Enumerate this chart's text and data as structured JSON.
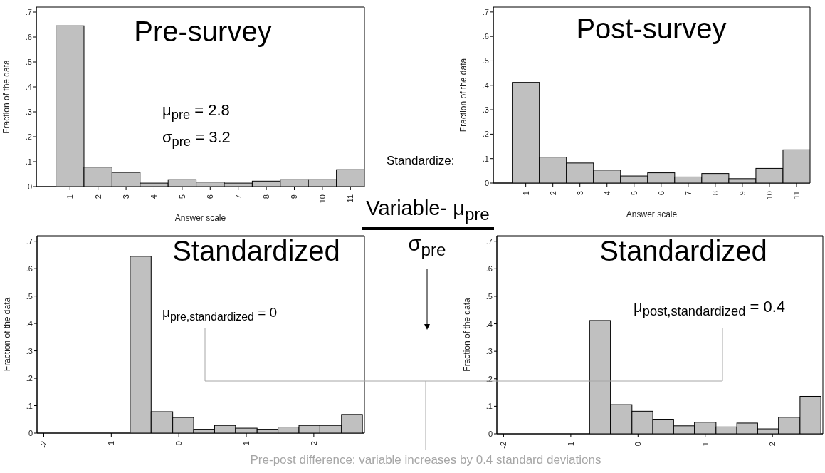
{
  "chart_data": [
    {
      "type": "histogram",
      "title": "Pre-survey",
      "xlabel": "Answer scale",
      "ylabel": "Fraction of the data",
      "color": "#c0c0c0",
      "bins": [
        0.5,
        1.5,
        2.5,
        3.5,
        4.5,
        5.5,
        6.5,
        7.5,
        8.5,
        9.5,
        10.5,
        11.5
      ],
      "values": [
        0.645,
        0.078,
        0.057,
        0.014,
        0.028,
        0.018,
        0.014,
        0.022,
        0.028,
        0.028,
        0.068
      ],
      "xlim": [
        -0.2,
        11.5
      ],
      "xticks": [
        1,
        2,
        3,
        4,
        5,
        6,
        7,
        8,
        9,
        10,
        11
      ],
      "ylim": [
        0,
        0.72
      ],
      "yticks": [
        {
          "value": 0,
          "label": "0"
        },
        {
          "value": 0.1,
          "label": ".1"
        },
        {
          "value": 0.2,
          "label": ".2"
        },
        {
          "value": 0.3,
          "label": ".3"
        },
        {
          "value": 0.4,
          "label": ".4"
        },
        {
          "value": 0.5,
          "label": ".5"
        },
        {
          "value": 0.6,
          "label": ".6"
        },
        {
          "value": 0.7,
          "label": ".7"
        }
      ],
      "grid": false,
      "annotations": [
        "μ$_{pre}$ = 2.8",
        "σ$_{pre}$ = 3.2"
      ]
    },
    {
      "type": "histogram",
      "title": "Post-survey",
      "xlabel": "Answer scale",
      "ylabel": "Fraction of the data",
      "color": "#c0c0c0",
      "bins": [
        0.5,
        1.5,
        2.5,
        3.5,
        4.5,
        5.5,
        6.5,
        7.5,
        8.5,
        9.5,
        10.5,
        11.5
      ],
      "values": [
        0.412,
        0.106,
        0.082,
        0.053,
        0.029,
        0.042,
        0.025,
        0.039,
        0.018,
        0.06,
        0.136
      ],
      "xlim": [
        -0.2,
        11.5
      ],
      "xticks": [
        1,
        2,
        3,
        4,
        5,
        6,
        7,
        8,
        9,
        10,
        11
      ],
      "ylim": [
        0,
        0.72
      ],
      "yticks": [
        {
          "value": 0,
          "label": "0"
        },
        {
          "value": 0.1,
          "label": ".1"
        },
        {
          "value": 0.2,
          "label": ".2"
        },
        {
          "value": 0.3,
          "label": ".3"
        },
        {
          "value": 0.4,
          "label": ".4"
        },
        {
          "value": 0.5,
          "label": ".5"
        },
        {
          "value": 0.6,
          "label": ".6"
        },
        {
          "value": 0.7,
          "label": ".7"
        }
      ],
      "grid": false
    },
    {
      "type": "histogram",
      "title": "Standardized",
      "ylabel": "Fraction of the data",
      "color": "#c0c0c0",
      "bins": [
        -0.72,
        -0.41,
        -0.09,
        0.22,
        0.53,
        0.84,
        1.16,
        1.47,
        1.78,
        2.09,
        2.41,
        2.72
      ],
      "values": [
        0.645,
        0.078,
        0.057,
        0.014,
        0.028,
        0.018,
        0.014,
        0.022,
        0.028,
        0.028,
        0.068
      ],
      "xlim": [
        -2.1,
        2.75
      ],
      "xticks": [
        -2,
        -1,
        0,
        1,
        2
      ],
      "ylim": [
        0,
        0.72
      ],
      "yticks": [
        {
          "value": 0,
          "label": "0"
        },
        {
          "value": 0.1,
          "label": ".1"
        },
        {
          "value": 0.2,
          "label": ".2"
        },
        {
          "value": 0.3,
          "label": ".3"
        },
        {
          "value": 0.4,
          "label": ".4"
        },
        {
          "value": 0.5,
          "label": ".5"
        },
        {
          "value": 0.6,
          "label": ".6"
        },
        {
          "value": 0.7,
          "label": ".7"
        }
      ],
      "grid": false,
      "annotations": [
        "μ$_{pre,standardized}$ = 0"
      ]
    },
    {
      "type": "histogram",
      "title": "Standardized",
      "ylabel": "Fraction of the data",
      "color": "#c0c0c0",
      "bins": [
        -0.72,
        -0.41,
        -0.09,
        0.22,
        0.53,
        0.84,
        1.16,
        1.47,
        1.78,
        2.09,
        2.41,
        2.72
      ],
      "values": [
        0.412,
        0.106,
        0.082,
        0.053,
        0.029,
        0.042,
        0.025,
        0.039,
        0.018,
        0.06,
        0.136
      ],
      "xlim": [
        -2.1,
        2.75
      ],
      "xticks": [
        -2,
        -1,
        0,
        1,
        2
      ],
      "ylim": [
        0,
        0.72
      ],
      "yticks": [
        {
          "value": 0,
          "label": "0"
        },
        {
          "value": 0.1,
          "label": ".1"
        },
        {
          "value": 0.2,
          "label": ".2"
        },
        {
          "value": 0.3,
          "label": ".3"
        },
        {
          "value": 0.4,
          "label": ".4"
        },
        {
          "value": 0.5,
          "label": ".5"
        },
        {
          "value": 0.6,
          "label": ".6"
        },
        {
          "value": 0.7,
          "label": ".7"
        }
      ],
      "grid": false,
      "annotations": [
        "μ$_{post,standardized}$ = 0.4"
      ]
    },
    {
      "type": "other",
      "annotations": [
        "Standardize:",
        "Variable- μ$_{pre}$",
        "σ$_{pre}$",
        "Pre-post difference: variable increases by 0.4 standard deviations"
      ]
    }
  ]
}
